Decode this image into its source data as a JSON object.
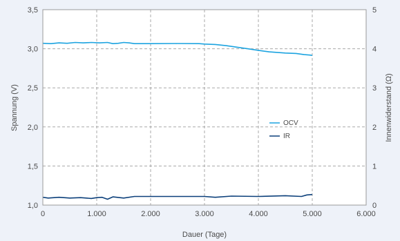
{
  "chart_data": {
    "type": "line",
    "xlabel": "Dauer (Tage)",
    "ylabel": "Spannung (V)",
    "y2label": "Innenwiderstand (Ω)",
    "xlim": [
      0,
      6000
    ],
    "ylim": [
      1.0,
      3.5
    ],
    "y2lim": [
      0,
      5
    ],
    "x_ticks": [
      0,
      1000,
      2000,
      3000,
      4000,
      5000,
      6000
    ],
    "x_tick_labels": [
      "0",
      "1.000",
      "2.000",
      "3.000",
      "4.000",
      "5.000",
      "6.000"
    ],
    "y_ticks": [
      1.0,
      1.5,
      2.0,
      2.5,
      3.0,
      3.5
    ],
    "y_tick_labels": [
      "1,0",
      "1,5",
      "2,0",
      "2,5",
      "3,0",
      "3,5"
    ],
    "y2_ticks": [
      0,
      1,
      2,
      3,
      4,
      5
    ],
    "y2_tick_labels": [
      "0",
      "1",
      "2",
      "3",
      "4",
      "5"
    ],
    "grid": true,
    "legend": "center-right",
    "series": [
      {
        "name": "OCV",
        "axis": "left",
        "color": "#1ba3e0",
        "x": [
          0,
          150,
          300,
          450,
          600,
          750,
          900,
          1050,
          1200,
          1300,
          1400,
          1500,
          1600,
          1700,
          2000,
          2500,
          2900,
          3000,
          3200,
          3400,
          3600,
          3800,
          4000,
          4200,
          4500,
          4700,
          4850,
          4950,
          5000
        ],
        "y": [
          3.07,
          3.065,
          3.075,
          3.07,
          3.08,
          3.075,
          3.08,
          3.075,
          3.08,
          3.065,
          3.07,
          3.08,
          3.075,
          3.065,
          3.065,
          3.067,
          3.065,
          3.06,
          3.055,
          3.04,
          3.02,
          3.0,
          2.98,
          2.96,
          2.945,
          2.94,
          2.925,
          2.92,
          2.915
        ]
      },
      {
        "name": "IR",
        "axis": "right",
        "color": "#0b3f7a",
        "x": [
          0,
          100,
          300,
          500,
          700,
          900,
          1000,
          1100,
          1200,
          1300,
          1500,
          1700,
          2000,
          2500,
          3000,
          3200,
          3500,
          4000,
          4500,
          4800,
          4900,
          5000
        ],
        "y": [
          0.2,
          0.18,
          0.2,
          0.18,
          0.19,
          0.17,
          0.19,
          0.2,
          0.15,
          0.21,
          0.18,
          0.22,
          0.22,
          0.22,
          0.22,
          0.2,
          0.23,
          0.22,
          0.24,
          0.22,
          0.26,
          0.27
        ]
      }
    ]
  }
}
